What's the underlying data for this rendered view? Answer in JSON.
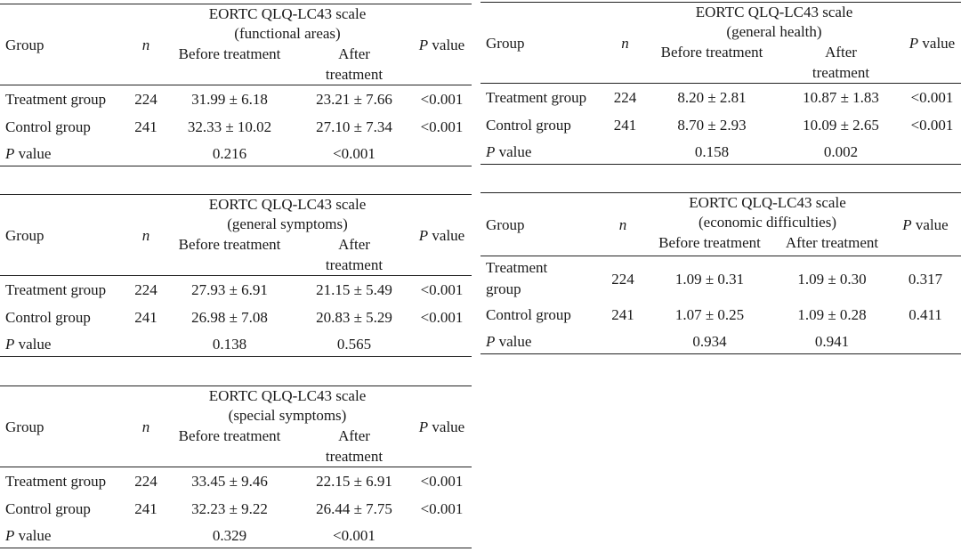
{
  "tables": [
    {
      "scale_title": "EORTC QLQ-LC43 scale",
      "scale_sub": "(functional areas)",
      "col_group": "Group",
      "col_n": "n",
      "col_before": "Before treatment",
      "col_after": "After treatment",
      "col_p": "value",
      "rows": [
        {
          "group": "Treatment group",
          "n": "224",
          "before": "31.99 ± 6.18",
          "after": "23.21 ± 7.66",
          "p": "<0.001"
        },
        {
          "group": "Control group",
          "n": "241",
          "before": "32.33 ± 10.02",
          "after": "27.10 ± 7.34",
          "p": "<0.001"
        }
      ],
      "pvalue_label": "value",
      "pvalue_before": "0.216",
      "pvalue_after": "<0.001"
    },
    {
      "scale_title": "EORTC QLQ-LC43 scale",
      "scale_sub": "(general health)",
      "col_group": "Group",
      "col_n": "n",
      "col_before": "Before treatment",
      "col_after": "After treatment",
      "col_p": "value",
      "rows": [
        {
          "group": "Treatment group",
          "n": "224",
          "before": "8.20 ± 2.81",
          "after": "10.87 ± 1.83",
          "p": "<0.001"
        },
        {
          "group": "Control group",
          "n": "241",
          "before": "8.70 ± 2.93",
          "after": "10.09 ± 2.65",
          "p": "<0.001"
        }
      ],
      "pvalue_label": "value",
      "pvalue_before": "0.158",
      "pvalue_after": "0.002"
    },
    {
      "scale_title": "EORTC QLQ-LC43 scale",
      "scale_sub": "(general symptoms)",
      "col_group": "Group",
      "col_n": "n",
      "col_before": "Before treatment",
      "col_after": "After treatment",
      "col_p": "value",
      "rows": [
        {
          "group": "Treatment group",
          "n": "224",
          "before": "27.93 ± 6.91",
          "after": "21.15 ± 5.49",
          "p": "<0.001"
        },
        {
          "group": "Control group",
          "n": "241",
          "before": "26.98 ± 7.08",
          "after": "20.83 ± 5.29",
          "p": "<0.001"
        }
      ],
      "pvalue_label": "value",
      "pvalue_before": "0.138",
      "pvalue_after": "0.565"
    },
    {
      "scale_title": "EORTC QLQ-LC43 scale",
      "scale_sub": "(economic difficulties)",
      "col_group": "Group",
      "col_n": "n",
      "col_before": "Before treatment",
      "col_after": "After treatment",
      "col_p": "value",
      "rows": [
        {
          "group": "Treatment group",
          "n": "224",
          "before": "1.09 ± 0.31",
          "after": "1.09 ± 0.30",
          "p": "0.317"
        },
        {
          "group": "Control group",
          "n": "241",
          "before": "1.07 ± 0.25",
          "after": "1.09 ± 0.28",
          "p": "0.411"
        }
      ],
      "pvalue_label": "value",
      "pvalue_before": "0.934",
      "pvalue_after": "0.941"
    },
    {
      "scale_title": "EORTC QLQ-LC43 scale",
      "scale_sub": "(special symptoms)",
      "col_group": "Group",
      "col_n": "n",
      "col_before": "Before treatment",
      "col_after": "After treatment",
      "col_p": "value",
      "rows": [
        {
          "group": "Treatment group",
          "n": "224",
          "before": "33.45 ± 9.46",
          "after": "22.15 ± 6.91",
          "p": "<0.001"
        },
        {
          "group": "Control group",
          "n": "241",
          "before": "32.23 ± 9.22",
          "after": "26.44 ± 7.75",
          "p": "<0.001"
        }
      ],
      "pvalue_label": "value",
      "pvalue_before": "0.329",
      "pvalue_after": "<0.001"
    }
  ]
}
